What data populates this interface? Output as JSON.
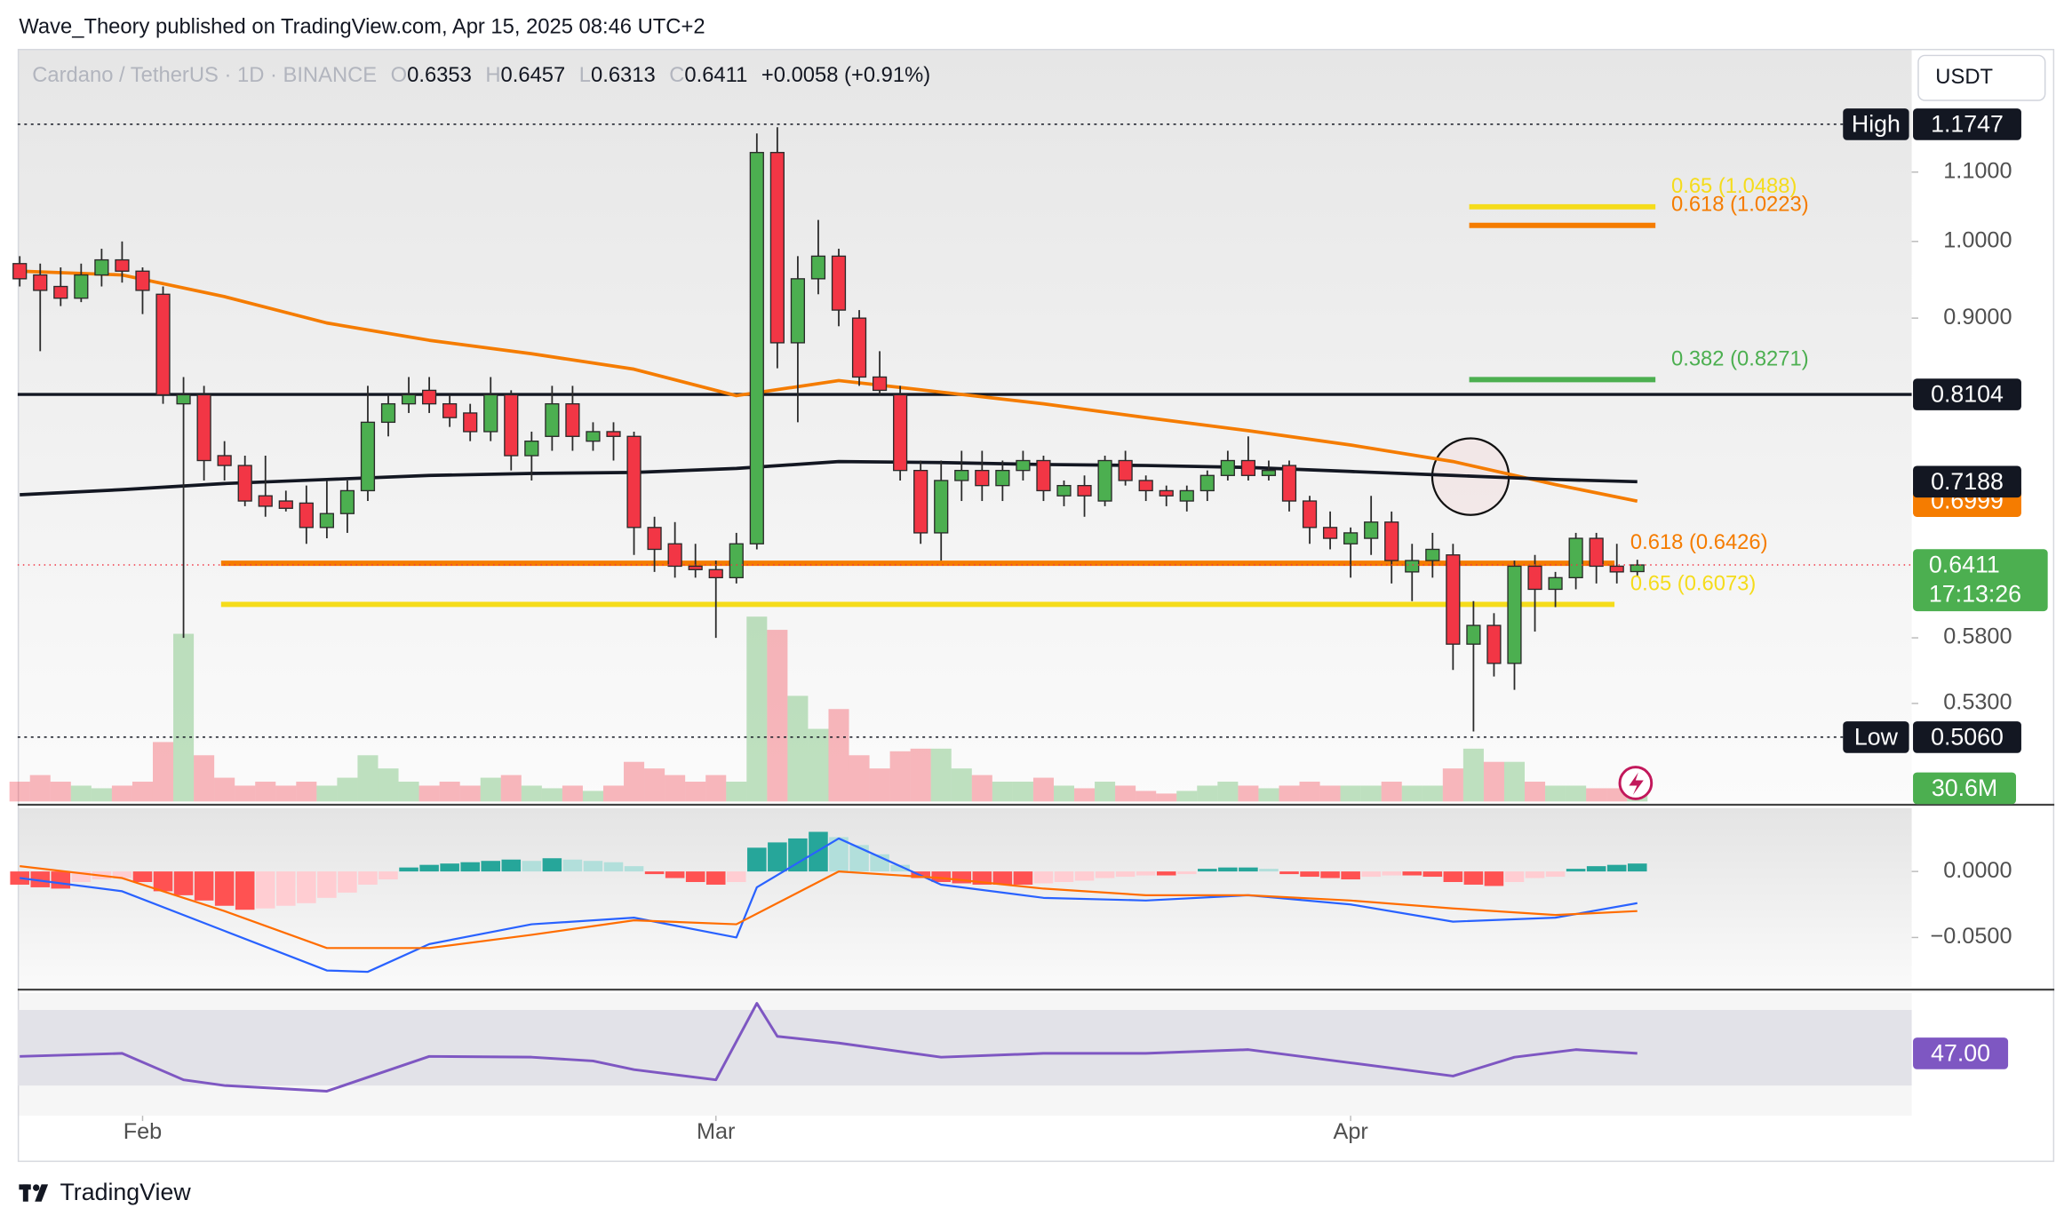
{
  "header": {
    "publisher": "Wave_Theory published on TradingView.com, Apr 15, 2025 08:46 UTC+2",
    "symbol": "Cardano / TetherUS · 1D · BINANCE",
    "ohlc_letters": [
      "O",
      "H",
      "L",
      "C"
    ],
    "change": "+0.0058 (+0.91%)",
    "currency": "USDT"
  },
  "chart_data": [
    {
      "type": "candlestick",
      "log_scale": true,
      "grid": false,
      "ylim": [
        0.4632,
        1.303
      ],
      "yticks": [
        {
          "value": 1.1,
          "label": "1.1000"
        },
        {
          "value": 1.0,
          "label": "1.0000"
        },
        {
          "value": 0.9,
          "label": "0.9000"
        },
        {
          "value": 0.58,
          "label": "0.5800"
        },
        {
          "value": 0.53,
          "label": "0.5300"
        }
      ],
      "xlim": [
        -0.1,
        92.4
      ],
      "xticks": [
        {
          "value": 6,
          "label": "Feb"
        },
        {
          "value": 34,
          "label": "Mar"
        },
        {
          "value": 65,
          "label": "Apr"
        }
      ],
      "up_color": "#4caf50",
      "down_color": "#f23645",
      "candles": {
        "open": [
          0.97,
          0.955,
          0.94,
          0.925,
          0.955,
          0.975,
          0.96,
          0.93,
          0.8,
          0.81,
          0.745,
          0.735,
          0.705,
          0.7,
          0.698,
          0.675,
          0.688,
          0.71,
          0.78,
          0.8,
          0.815,
          0.8,
          0.79,
          0.77,
          0.81,
          0.745,
          0.765,
          0.8,
          0.76,
          0.77,
          0.765,
          0.675,
          0.66,
          0.64,
          0.637,
          0.63,
          0.66,
          1.13,
          0.87,
          0.95,
          0.98,
          0.9,
          0.83,
          0.81,
          0.73,
          0.67,
          0.72,
          0.73,
          0.715,
          0.73,
          0.74,
          0.705,
          0.715,
          0.7,
          0.74,
          0.72,
          0.71,
          0.7,
          0.71,
          0.725,
          0.74,
          0.725,
          0.735,
          0.7,
          0.675,
          0.66,
          0.665,
          0.68,
          0.635,
          0.645,
          0.65,
          0.575,
          0.59,
          0.56,
          0.64,
          0.62,
          0.63,
          0.665,
          0.64,
          0.6353
        ],
        "high": [
          0.98,
          0.97,
          0.965,
          0.97,
          0.99,
          1.0,
          0.965,
          0.94,
          0.83,
          0.82,
          0.76,
          0.745,
          0.745,
          0.71,
          0.715,
          0.72,
          0.72,
          0.82,
          0.81,
          0.83,
          0.83,
          0.81,
          0.8,
          0.83,
          0.815,
          0.77,
          0.82,
          0.82,
          0.78,
          0.78,
          0.77,
          0.685,
          0.68,
          0.66,
          0.645,
          0.67,
          1.16,
          1.17,
          0.98,
          1.03,
          0.99,
          0.91,
          0.86,
          0.82,
          0.74,
          0.74,
          0.75,
          0.75,
          0.74,
          0.75,
          0.745,
          0.72,
          0.725,
          0.745,
          0.75,
          0.725,
          0.715,
          0.715,
          0.73,
          0.75,
          0.765,
          0.74,
          0.74,
          0.705,
          0.69,
          0.675,
          0.705,
          0.69,
          0.66,
          0.67,
          0.66,
          0.61,
          0.6,
          0.645,
          0.65,
          0.635,
          0.67,
          0.67,
          0.66,
          0.6457
        ],
        "low": [
          0.94,
          0.86,
          0.915,
          0.92,
          0.94,
          0.945,
          0.905,
          0.8,
          0.58,
          0.72,
          0.72,
          0.695,
          0.685,
          0.69,
          0.66,
          0.665,
          0.67,
          0.7,
          0.765,
          0.79,
          0.79,
          0.775,
          0.76,
          0.76,
          0.73,
          0.72,
          0.75,
          0.75,
          0.75,
          0.74,
          0.65,
          0.635,
          0.63,
          0.63,
          0.58,
          0.625,
          0.655,
          0.84,
          0.78,
          0.93,
          0.89,
          0.82,
          0.81,
          0.72,
          0.66,
          0.645,
          0.7,
          0.7,
          0.7,
          0.72,
          0.7,
          0.695,
          0.685,
          0.695,
          0.715,
          0.7,
          0.695,
          0.69,
          0.7,
          0.72,
          0.72,
          0.72,
          0.69,
          0.66,
          0.655,
          0.63,
          0.65,
          0.625,
          0.61,
          0.63,
          0.555,
          0.51,
          0.55,
          0.54,
          0.585,
          0.605,
          0.62,
          0.625,
          0.625,
          0.6313
        ],
        "close": [
          0.95,
          0.935,
          0.925,
          0.955,
          0.975,
          0.96,
          0.935,
          0.81,
          0.81,
          0.74,
          0.735,
          0.7,
          0.695,
          0.693,
          0.675,
          0.688,
          0.71,
          0.78,
          0.8,
          0.81,
          0.8,
          0.785,
          0.77,
          0.81,
          0.745,
          0.76,
          0.8,
          0.765,
          0.77,
          0.765,
          0.675,
          0.655,
          0.64,
          0.637,
          0.63,
          0.66,
          1.13,
          0.87,
          0.95,
          0.98,
          0.91,
          0.83,
          0.815,
          0.73,
          0.67,
          0.72,
          0.73,
          0.715,
          0.73,
          0.74,
          0.71,
          0.715,
          0.705,
          0.74,
          0.72,
          0.71,
          0.705,
          0.71,
          0.725,
          0.74,
          0.725,
          0.73,
          0.7,
          0.675,
          0.665,
          0.67,
          0.68,
          0.645,
          0.645,
          0.655,
          0.575,
          0.59,
          0.56,
          0.64,
          0.62,
          0.63,
          0.665,
          0.64,
          0.635,
          0.6411
        ]
      },
      "countdown": "17:13:26",
      "lines": [
        {
          "color": "#f57c00",
          "x": [
            0,
            5,
            10,
            15,
            20,
            25,
            30,
            35,
            40,
            45,
            50,
            55,
            60,
            65,
            70,
            75,
            79
          ],
          "values": [
            0.96,
            0.955,
            0.927,
            0.894,
            0.873,
            0.857,
            0.839,
            0.809,
            0.826,
            0.813,
            0.8,
            0.785,
            0.771,
            0.756,
            0.739,
            0.716,
            0.6999
          ]
        },
        {
          "color": "#131722",
          "x": [
            0,
            5,
            10,
            15,
            20,
            25,
            30,
            35,
            40,
            45,
            50,
            55,
            60,
            65,
            70,
            75,
            79
          ],
          "values": [
            0.706,
            0.711,
            0.717,
            0.721,
            0.725,
            0.727,
            0.728,
            0.732,
            0.739,
            0.738,
            0.736,
            0.735,
            0.733,
            0.729,
            0.725,
            0.721,
            0.7188
          ]
        }
      ],
      "levels": [
        {
          "name": "High",
          "value": 1.1747,
          "style": "dotted"
        },
        {
          "value": 0.8104,
          "style": "solid"
        },
        {
          "name": "Low",
          "value": 0.506,
          "value_label": "0.5060",
          "style": "dotted"
        }
      ],
      "fibs": [
        {
          "label": "0.65 (1.0488)",
          "value": 1.0488,
          "color": "#f5dc1b"
        },
        {
          "label": "0.618 (1.0223)",
          "value": 1.0223,
          "color": "#f57c00"
        },
        {
          "label": "0.382 (0.8271)",
          "value": 0.8271,
          "color": "#4caf50"
        },
        {
          "label": "0.618 (0.6426)",
          "value": 0.6426,
          "color": "#f57c00"
        },
        {
          "label": "0.65 (0.6073)",
          "value": 0.6073,
          "color": "#f5dc1b"
        }
      ],
      "volume": {
        "values": [
          45,
          60,
          45,
          36,
          30,
          36,
          45,
          135,
          381,
          105,
          54,
          36,
          45,
          36,
          45,
          36,
          54,
          105,
          75,
          45,
          36,
          45,
          36,
          54,
          60,
          36,
          30,
          36,
          24,
          36,
          90,
          75,
          60,
          45,
          60,
          45,
          420,
          390,
          240,
          165,
          210,
          105,
          75,
          114,
          120,
          120,
          75,
          60,
          45,
          45,
          54,
          36,
          30,
          45,
          36,
          24,
          18,
          24,
          36,
          45,
          36,
          30,
          36,
          45,
          36,
          36,
          36,
          45,
          36,
          36,
          75,
          120,
          90,
          90,
          45,
          36,
          36,
          30,
          30,
          30.6
        ],
        "last_label": "30.6M"
      }
    },
    {
      "type": "macd",
      "ylim": [
        -0.088,
        0.048
      ],
      "yticks": [
        {
          "value": 0,
          "label": "0.0000"
        },
        {
          "value": -0.05,
          "label": "−0.0500"
        }
      ],
      "histogram": [
        -0.01,
        -0.012,
        -0.013,
        -0.008,
        -0.006,
        -0.005,
        -0.008,
        -0.015,
        -0.018,
        -0.022,
        -0.026,
        -0.029,
        -0.028,
        -0.026,
        -0.024,
        -0.02,
        -0.016,
        -0.01,
        -0.006,
        0.003,
        0.005,
        0.006,
        0.007,
        0.008,
        0.009,
        0.008,
        0.01,
        0.009,
        0.008,
        0.007,
        0.004,
        -0.002,
        -0.005,
        -0.008,
        -0.01,
        -0.008,
        0.018,
        0.022,
        0.025,
        0.03,
        0.026,
        0.02,
        0.013,
        0.005,
        -0.005,
        -0.008,
        -0.009,
        -0.01,
        -0.01,
        -0.01,
        -0.009,
        -0.008,
        -0.007,
        -0.005,
        -0.004,
        -0.003,
        -0.003,
        -0.002,
        0.002,
        0.003,
        0.003,
        0.002,
        -0.002,
        -0.004,
        -0.005,
        -0.006,
        -0.004,
        -0.003,
        -0.003,
        -0.004,
        -0.008,
        -0.01,
        -0.011,
        -0.008,
        -0.005,
        -0.004,
        0.002,
        0.004,
        0.005,
        0.006
      ],
      "lines": [
        {
          "color": "#2962ff",
          "x": [
            0,
            5,
            10,
            15,
            17,
            20,
            25,
            30,
            35,
            36,
            40,
            45,
            50,
            55,
            60,
            65,
            70,
            75,
            79
          ],
          "values": [
            -0.005,
            -0.015,
            -0.045,
            -0.075,
            -0.076,
            -0.055,
            -0.04,
            -0.035,
            -0.05,
            -0.012,
            0.025,
            -0.01,
            -0.02,
            -0.022,
            -0.018,
            -0.025,
            -0.038,
            -0.035,
            -0.024
          ]
        },
        {
          "color": "#ff6d00",
          "x": [
            0,
            5,
            10,
            15,
            20,
            25,
            30,
            35,
            40,
            45,
            50,
            55,
            60,
            65,
            70,
            75,
            79
          ],
          "values": [
            0.004,
            -0.005,
            -0.03,
            -0.058,
            -0.058,
            -0.048,
            -0.037,
            -0.04,
            0,
            -0.005,
            -0.013,
            -0.018,
            -0.018,
            -0.022,
            -0.028,
            -0.033,
            -0.03
          ]
        }
      ]
    },
    {
      "type": "rsi",
      "ylim": [
        14,
        79
      ],
      "band": [
        30,
        70
      ],
      "color": "#7e57c2",
      "x": [
        0,
        5,
        8,
        10,
        15,
        20,
        25,
        28,
        30,
        34,
        36,
        37,
        40,
        45,
        50,
        55,
        60,
        65,
        70,
        73,
        76,
        79
      ],
      "values": [
        45.4,
        47,
        33,
        30,
        27,
        45.4,
        45,
        43,
        38.4,
        33,
        73.5,
        56,
        52.5,
        45,
        47,
        47,
        49,
        42,
        35,
        45,
        49,
        47
      ],
      "last_label": "47.00"
    }
  ],
  "footer": {
    "brand": "TradingView"
  }
}
